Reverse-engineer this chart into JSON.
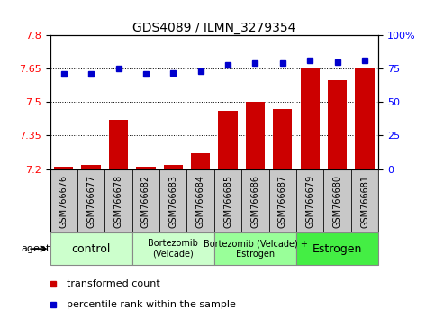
{
  "title": "GDS4089 / ILMN_3279354",
  "samples": [
    "GSM766676",
    "GSM766677",
    "GSM766678",
    "GSM766682",
    "GSM766683",
    "GSM766684",
    "GSM766685",
    "GSM766686",
    "GSM766687",
    "GSM766679",
    "GSM766680",
    "GSM766681"
  ],
  "bar_values": [
    7.21,
    7.22,
    7.42,
    7.21,
    7.22,
    7.27,
    7.46,
    7.5,
    7.47,
    7.65,
    7.6,
    7.65
  ],
  "dot_values": [
    71,
    71,
    75,
    71,
    72,
    73,
    78,
    79,
    79,
    81,
    80,
    81
  ],
  "bar_color": "#cc0000",
  "dot_color": "#0000cc",
  "ymin": 7.2,
  "ymax": 7.8,
  "y2min": 0,
  "y2max": 100,
  "yticks": [
    7.2,
    7.35,
    7.5,
    7.65,
    7.8
  ],
  "y2ticks": [
    0,
    25,
    50,
    75,
    100
  ],
  "dotted_lines": [
    7.35,
    7.5,
    7.65
  ],
  "groups": [
    {
      "label": "control",
      "start": 0,
      "end": 3,
      "color": "#ccffcc"
    },
    {
      "label": "Bortezomib\n(Velcade)",
      "start": 3,
      "end": 6,
      "color": "#ccffcc"
    },
    {
      "label": "Bortezomib (Velcade) +\nEstrogen",
      "start": 6,
      "end": 9,
      "color": "#99ff99"
    },
    {
      "label": "Estrogen",
      "start": 9,
      "end": 12,
      "color": "#44ee44"
    }
  ],
  "agent_label": "agent",
  "legend_bar_label": "transformed count",
  "legend_dot_label": "percentile rank within the sample",
  "bar_width": 0.7,
  "label_box_color": "#c8c8c8",
  "group_border_color": "#888888"
}
